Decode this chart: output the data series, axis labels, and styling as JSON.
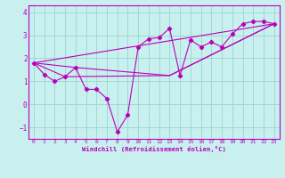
{
  "xlabel": "Windchill (Refroidissement éolien,°C)",
  "background_color": "#c8f0ee",
  "grid_color": "#a0d8d4",
  "line_color": "#bb00bb",
  "xlim": [
    -0.5,
    23.5
  ],
  "ylim": [
    -1.5,
    4.3
  ],
  "xticks": [
    0,
    1,
    2,
    3,
    4,
    5,
    6,
    7,
    8,
    9,
    10,
    11,
    12,
    13,
    14,
    15,
    16,
    17,
    18,
    19,
    20,
    21,
    22,
    23
  ],
  "yticks": [
    -1,
    0,
    1,
    2,
    3,
    4
  ],
  "main_x": [
    0,
    1,
    2,
    3,
    4,
    5,
    6,
    7,
    8,
    9,
    10,
    11,
    12,
    13,
    14,
    15,
    16,
    17,
    18,
    19,
    20,
    21,
    22,
    23
  ],
  "main_y": [
    1.8,
    1.3,
    1.0,
    1.2,
    1.6,
    0.65,
    0.65,
    0.25,
    -1.2,
    -0.45,
    2.5,
    2.85,
    2.9,
    3.3,
    1.25,
    2.8,
    2.5,
    2.7,
    2.5,
    3.05,
    3.5,
    3.6,
    3.6,
    3.5
  ],
  "trend_lines": [
    {
      "x": [
        0,
        23
      ],
      "y": [
        1.8,
        3.5
      ]
    },
    {
      "x": [
        0,
        4,
        13,
        23
      ],
      "y": [
        1.8,
        1.6,
        1.25,
        3.5
      ]
    },
    {
      "x": [
        0,
        3,
        13,
        23
      ],
      "y": [
        1.8,
        1.2,
        1.25,
        3.5
      ]
    }
  ]
}
